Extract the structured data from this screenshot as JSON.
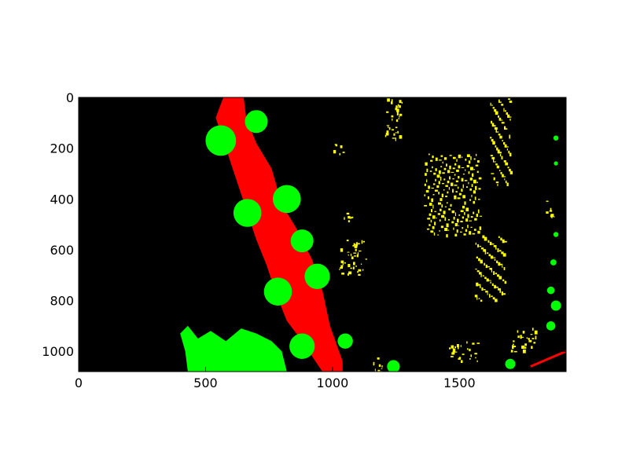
{
  "chart_data": {
    "type": "heatmap",
    "title": "",
    "xlabel": "",
    "ylabel": "",
    "xlim": [
      0,
      1920
    ],
    "ylim": [
      1080,
      0
    ],
    "x_ticks": [
      0,
      500,
      1000,
      1500
    ],
    "y_ticks": [
      0,
      200,
      400,
      600,
      800,
      1000
    ],
    "grid": false,
    "background_color": "#000000",
    "class_colors": {
      "red": "#ff0000",
      "green": "#00ff00",
      "yellow": "#ffff00"
    },
    "red_band": [
      [
        570,
        0
      ],
      [
        650,
        0
      ],
      [
        660,
        80
      ],
      [
        700,
        180
      ],
      [
        760,
        280
      ],
      [
        800,
        420
      ],
      [
        860,
        520
      ],
      [
        920,
        640
      ],
      [
        960,
        760
      ],
      [
        990,
        900
      ],
      [
        1040,
        1040
      ],
      [
        1040,
        1080
      ],
      [
        960,
        1080
      ],
      [
        880,
        960
      ],
      [
        820,
        880
      ],
      [
        780,
        780
      ],
      [
        740,
        660
      ],
      [
        700,
        560
      ],
      [
        660,
        440
      ],
      [
        620,
        320
      ],
      [
        580,
        200
      ],
      [
        540,
        80
      ]
    ],
    "green_blobs": [
      [
        700,
        95,
        45
      ],
      [
        560,
        170,
        60
      ],
      [
        820,
        400,
        55
      ],
      [
        665,
        455,
        55
      ],
      [
        880,
        565,
        45
      ],
      [
        940,
        705,
        50
      ],
      [
        785,
        765,
        55
      ],
      [
        880,
        980,
        50
      ],
      [
        1050,
        960,
        30
      ],
      [
        1240,
        1060,
        25
      ],
      [
        1700,
        1050,
        20
      ],
      [
        1880,
        160,
        10
      ],
      [
        1880,
        260,
        8
      ],
      [
        1880,
        540,
        10
      ],
      [
        1870,
        650,
        12
      ],
      [
        1860,
        760,
        15
      ],
      [
        1880,
        820,
        20
      ],
      [
        1860,
        900,
        18
      ]
    ],
    "green_cluster": [
      [
        400,
        930
      ],
      [
        430,
        900
      ],
      [
        470,
        950
      ],
      [
        520,
        920
      ],
      [
        580,
        960
      ],
      [
        640,
        910
      ],
      [
        700,
        930
      ],
      [
        760,
        960
      ],
      [
        800,
        1000
      ],
      [
        820,
        1080
      ],
      [
        430,
        1080
      ],
      [
        420,
        1000
      ]
    ],
    "yellow_regions": [
      [
        1200,
        0,
        80,
        160
      ],
      [
        1360,
        220,
        220,
        320
      ],
      [
        1620,
        0,
        80,
        340
      ],
      [
        1020,
        560,
        110,
        140
      ],
      [
        1040,
        450,
        40,
        40
      ],
      [
        1560,
        540,
        120,
        260
      ],
      [
        1700,
        900,
        100,
        100
      ],
      [
        1450,
        960,
        120,
        80
      ],
      [
        1160,
        1020,
        60,
        60
      ],
      [
        1000,
        180,
        40,
        40
      ],
      [
        1840,
        400,
        40,
        80
      ]
    ],
    "red_line": [
      [
        1780,
        1060
      ],
      [
        1920,
        1000
      ]
    ]
  }
}
